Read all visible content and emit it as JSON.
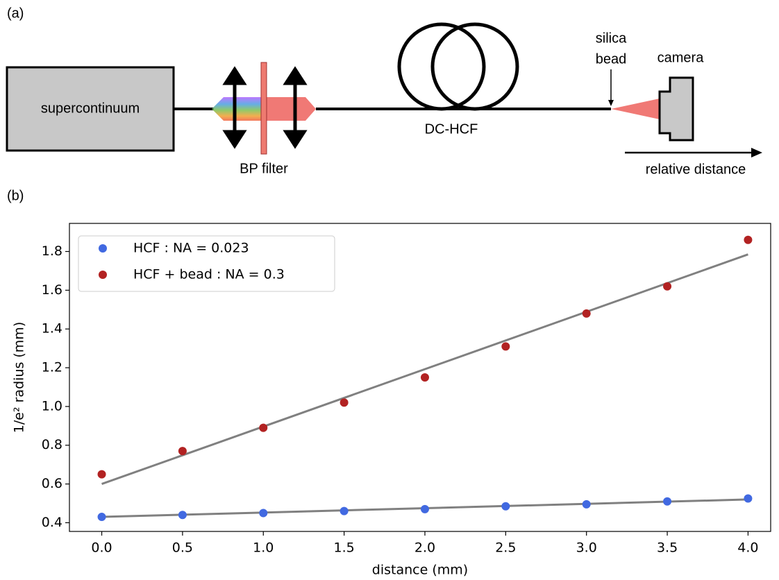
{
  "diagram": {
    "panel_a": "(a)",
    "source": "supercontinuum",
    "filter": "BP filter",
    "fiber": "DC-HCF",
    "bead_line1": "silica",
    "bead_line2": "bead",
    "camera": "camera",
    "distance": "relative distance",
    "panel_b": "(b)"
  },
  "chart_data": {
    "type": "scatter",
    "x_label": "distance (mm)",
    "y_label": "1/e² radius (mm)",
    "x": [
      0,
      0.5,
      1,
      1.5,
      2,
      2.5,
      3,
      3.5,
      4
    ],
    "series": [
      {
        "name": "HCF : NA = 0.023",
        "color": "#4169e1",
        "values": [
          0.43,
          0.44,
          0.45,
          0.46,
          0.47,
          0.485,
          0.495,
          0.51,
          0.525
        ]
      },
      {
        "name": "HCF + bead : NA = 0.3",
        "color": "#b22222",
        "values": [
          0.65,
          0.77,
          0.89,
          1.02,
          1.15,
          1.31,
          1.48,
          1.62,
          1.86
        ]
      }
    ],
    "fits": [
      {
        "color": "#808080",
        "x": [
          0,
          4
        ],
        "values": [
          0.43,
          0.52
        ]
      },
      {
        "color": "#808080",
        "x": [
          0,
          4
        ],
        "values": [
          0.6,
          1.785
        ]
      }
    ],
    "xlim": [
      -0.2,
      4.14
    ],
    "ylim": [
      0.355,
      1.945
    ],
    "xticks": [
      {
        "value": 0,
        "label": "0.0"
      },
      0.5,
      {
        "value": 1,
        "label": "1.0"
      },
      1.5,
      {
        "value": 2,
        "label": "2.0"
      },
      2.5,
      {
        "value": 3,
        "label": "3.0"
      },
      3.5,
      {
        "value": 4,
        "label": "4.0"
      }
    ],
    "yticks": [
      0.4,
      0.6,
      0.8,
      {
        "value": 1,
        "label": "1.0"
      },
      1.2,
      1.4,
      1.6,
      1.8
    ],
    "grid": false,
    "legend": "upper left"
  }
}
